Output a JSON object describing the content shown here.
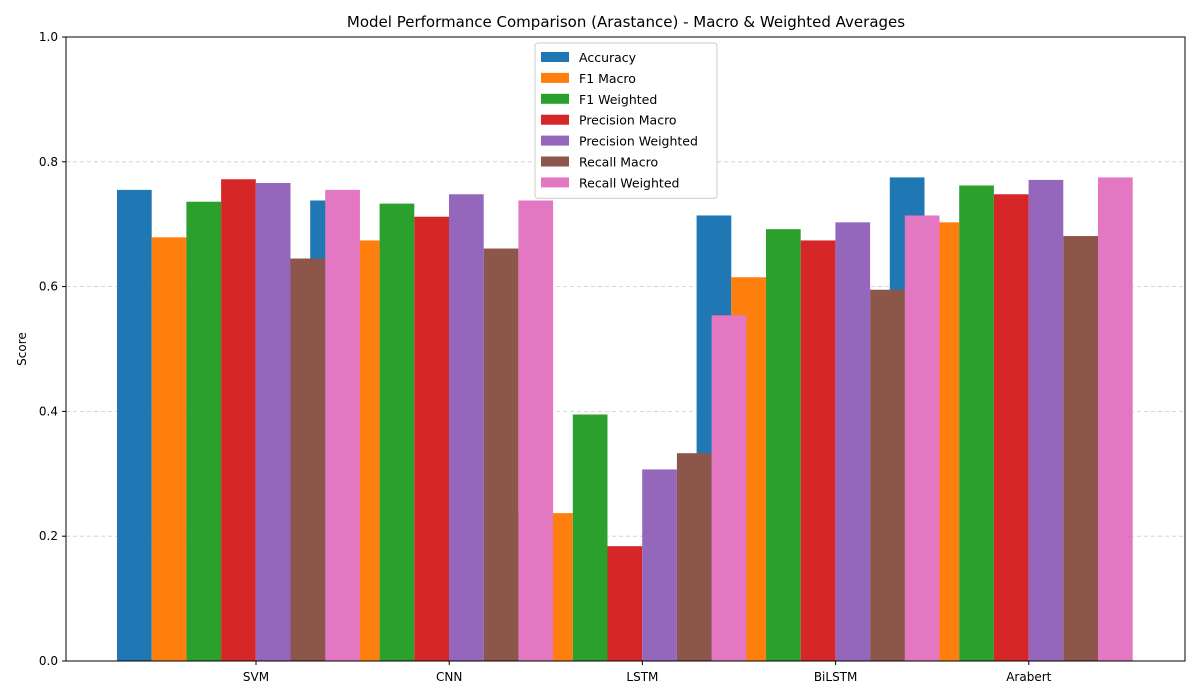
{
  "chart_data": {
    "type": "bar",
    "title": "Model Performance Comparison (Arastance) - Macro & Weighted Averages",
    "xlabel": "",
    "ylabel": "Score",
    "ylim": [
      0,
      1.0
    ],
    "yticks": [
      "0.0",
      "0.2",
      "0.4",
      "0.6",
      "0.8",
      "1.0"
    ],
    "grid": "y-dashed",
    "legend_position": "top-center",
    "categories": [
      "SVM",
      "CNN",
      "LSTM",
      "BiLSTM",
      "Arabert"
    ],
    "series": [
      {
        "name": "Accuracy",
        "color": "#1f77b4",
        "values": [
          0.755,
          0.738,
          0.236,
          0.714,
          0.775
        ]
      },
      {
        "name": "F1 Macro",
        "color": "#ff7f0e",
        "values": [
          0.679,
          0.674,
          0.237,
          0.615,
          0.703
        ]
      },
      {
        "name": "F1 Weighted",
        "color": "#2ca02c",
        "values": [
          0.736,
          0.733,
          0.395,
          0.692,
          0.762
        ]
      },
      {
        "name": "Precision Macro",
        "color": "#d62728",
        "values": [
          0.772,
          0.712,
          0.184,
          0.674,
          0.748
        ]
      },
      {
        "name": "Precision Weighted",
        "color": "#9467bd",
        "values": [
          0.766,
          0.748,
          0.307,
          0.703,
          0.771
        ]
      },
      {
        "name": "Recall Macro",
        "color": "#8c564b",
        "values": [
          0.645,
          0.661,
          0.333,
          0.595,
          0.681
        ]
      },
      {
        "name": "Recall Weighted",
        "color": "#e377c2",
        "values": [
          0.755,
          0.738,
          0.554,
          0.714,
          0.775
        ]
      }
    ]
  }
}
